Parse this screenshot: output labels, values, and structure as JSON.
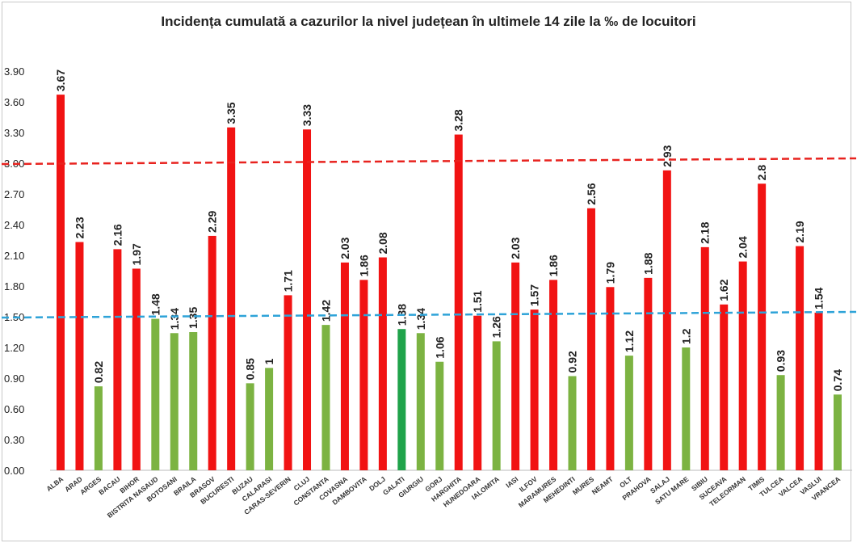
{
  "chart_data": {
    "type": "bar",
    "title": "Incidența cumulată a cazurilor la nivel județean în ultimele 14 zile la ‰ de locuitori",
    "xlabel": "",
    "ylabel": "",
    "ylim": [
      0,
      3.9
    ],
    "yticks": [
      "0.00",
      "0.30",
      "0.60",
      "0.90",
      "1.20",
      "1.50",
      "1.80",
      "2.10",
      "2.40",
      "2.70",
      "3.00",
      "3.30",
      "3.60",
      "3.90"
    ],
    "grid": false,
    "categories": [
      "ALBA",
      "ARAD",
      "ARGES",
      "BACAU",
      "BIHOR",
      "BISTRITA NASAUD",
      "BOTOSANI",
      "BRAILA",
      "BRASOV",
      "BUCURESTI",
      "BUZAU",
      "CALARASI",
      "CARAS-SEVERIN",
      "CLUJ",
      "CONSTANTA",
      "COVASNA",
      "DAMBOVITA",
      "DOLJ",
      "GALATI",
      "GIURGIU",
      "GORJ",
      "HARGHITA",
      "HUNEDOARA",
      "IALOMITA",
      "IASI",
      "ILFOV",
      "MARAMURES",
      "MEHEDINTI",
      "MURES",
      "NEAMT",
      "OLT",
      "PRAHOVA",
      "SALAJ",
      "SATU MARE",
      "SIBIU",
      "SUCEAVA",
      "TELEORMAN",
      "TIMIS",
      "TULCEA",
      "VALCEA",
      "VASLUI",
      "VRANCEA"
    ],
    "values": [
      3.67,
      2.23,
      0.82,
      2.16,
      1.97,
      1.48,
      1.34,
      1.35,
      2.29,
      3.35,
      0.85,
      1,
      1.71,
      3.33,
      1.42,
      2.03,
      1.86,
      2.08,
      1.38,
      1.34,
      1.06,
      3.28,
      1.51,
      1.26,
      2.03,
      1.57,
      1.86,
      0.92,
      2.56,
      1.79,
      1.12,
      1.88,
      2.93,
      1.2,
      2.18,
      1.62,
      2.04,
      2.8,
      0.93,
      2.19,
      1.54,
      0.74
    ],
    "data_labels": [
      "3.67",
      "2.23",
      "0.82",
      "2.16",
      "1.97",
      "1.48",
      "1.34",
      "1.35",
      "2.29",
      "3.35",
      "0.85",
      "1",
      "1.71",
      "3.33",
      "1.42",
      "2.03",
      "1.86",
      "2.08",
      "1.38",
      "1.34",
      "1.06",
      "3.28",
      "1.51",
      "1.26",
      "2.03",
      "1.57",
      "1.86",
      "0.92",
      "2.56",
      "1.79",
      "1.12",
      "1.88",
      "2.93",
      "1.2",
      "2.18",
      "1.62",
      "2.04",
      "2.8",
      "0.93",
      "2.19",
      "1.54",
      "0.74"
    ],
    "bar_colors": [
      "red",
      "red",
      "green",
      "red",
      "red",
      "green",
      "green",
      "green",
      "red",
      "red",
      "green",
      "green",
      "red",
      "red",
      "green",
      "red",
      "red",
      "red",
      "brightgreen",
      "green",
      "green",
      "red",
      "red",
      "green",
      "red",
      "red",
      "red",
      "green",
      "red",
      "red",
      "green",
      "red",
      "red",
      "green",
      "red",
      "red",
      "red",
      "red",
      "green",
      "red",
      "red",
      "green"
    ],
    "reference_lines": [
      {
        "value": 3.0,
        "color": "#e8231f",
        "style": "dashed"
      },
      {
        "value": 1.5,
        "color": "#2ea3d8",
        "style": "dashed"
      }
    ],
    "colors": {
      "red": "#f11313",
      "green": "#7cb342",
      "brightgreen": "#1fa34a"
    }
  }
}
